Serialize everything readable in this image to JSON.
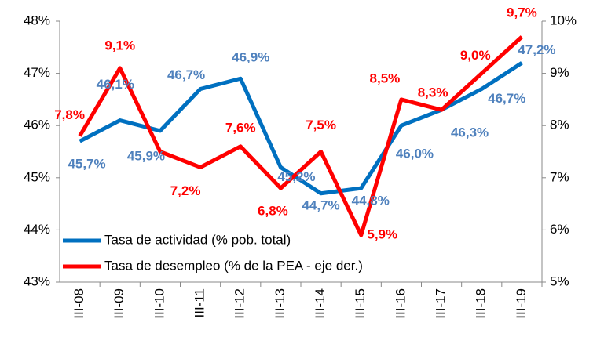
{
  "chart_data": {
    "type": "line",
    "categories": [
      "III-08",
      "III-09",
      "III-10",
      "III-11",
      "III-12",
      "III-13",
      "III-14",
      "III-15",
      "III-16",
      "III-17",
      "III-18",
      "III-19"
    ],
    "series": [
      {
        "name": "Tasa de actividad (% pob. total)",
        "color": "#0070c0",
        "values": [
          45.7,
          46.1,
          45.9,
          46.7,
          46.9,
          45.2,
          44.7,
          44.8,
          46.0,
          46.3,
          46.7,
          47.2
        ],
        "value_labels": [
          "45,7%",
          "46,1%",
          "45,9%",
          "46,7%",
          "46,9%",
          "45,2%",
          "44,7%",
          "44,8%",
          "46,0%",
          "46,3%",
          "46,7%",
          "47,2%"
        ],
        "label_color": "#4f81bd"
      },
      {
        "name": "Tasa de desempleo (% de la PEA - eje der.)",
        "color": "#ff0000",
        "axis": "y2",
        "values": [
          7.8,
          9.1,
          7.5,
          7.2,
          7.6,
          6.8,
          7.5,
          5.9,
          8.5,
          8.3,
          9.0,
          9.7
        ],
        "value_labels": [
          "7,8%",
          "9,1%",
          null,
          "7,2%",
          "7,6%",
          "6,8%",
          "7,5%",
          "5,9%",
          "8,5%",
          "8,3%",
          "9,0%",
          "9,7%"
        ],
        "label_color": "#ff0000"
      }
    ],
    "ylim": [
      43,
      48
    ],
    "yticks": [
      {
        "value": 43,
        "label": "43%"
      },
      {
        "value": 44,
        "label": "44%"
      },
      {
        "value": 45,
        "label": "45%"
      },
      {
        "value": 46,
        "label": "46%"
      },
      {
        "value": 47,
        "label": "47%"
      },
      {
        "value": 48,
        "label": "48%"
      }
    ],
    "y2lim": [
      5,
      10
    ],
    "y2ticks": [
      {
        "value": 5,
        "label": "5%"
      },
      {
        "value": 6,
        "label": "6%"
      },
      {
        "value": 7,
        "label": "7%"
      },
      {
        "value": 8,
        "label": "8%"
      },
      {
        "value": 9,
        "label": "9%"
      },
      {
        "value": 10,
        "label": "10%"
      }
    ],
    "legend": "lower left"
  }
}
